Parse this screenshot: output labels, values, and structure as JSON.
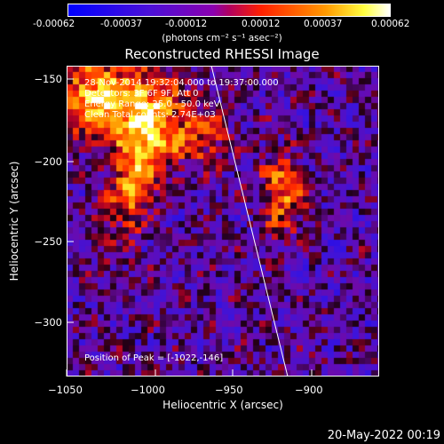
{
  "colorbar": {
    "ticks": [
      "-0.00062",
      "-0.00037",
      "-0.00012",
      "0.00012",
      "0.00037",
      "0.00062"
    ],
    "unit": "(photons cm⁻² s⁻¹ asec⁻²)",
    "colors": [
      "#0000ff",
      "#7000c0",
      "#9b00a8",
      "#ff2000",
      "#ff9900",
      "#ffff00",
      "#ffffff"
    ]
  },
  "title": "Reconstructed RHESSI Image",
  "annotations": {
    "line1": "28-Nov-2014 19:32:04.000 to 19:37:00.000",
    "line2": "Detectors: 3F 6F 9F, Att 0",
    "line3": "Energy Range: 25.0 - 50.0 keV",
    "line4": "Clean     Total counts: 2.74E+03",
    "peak": "Position of Peak = [-1022,-146]"
  },
  "axes": {
    "xlabel": "Heliocentric X (arcsec)",
    "ylabel": "Heliocentric Y (arcsec)",
    "xticks": [
      "−1050",
      "−1000",
      "−950",
      "−900"
    ],
    "yticks": [
      "−150",
      "−200",
      "−250",
      "−300"
    ],
    "xrange": [
      -1050,
      -875
    ],
    "yrange": [
      -333,
      -142
    ]
  },
  "footer": {
    "date": "20-May-2022 00:19"
  }
}
